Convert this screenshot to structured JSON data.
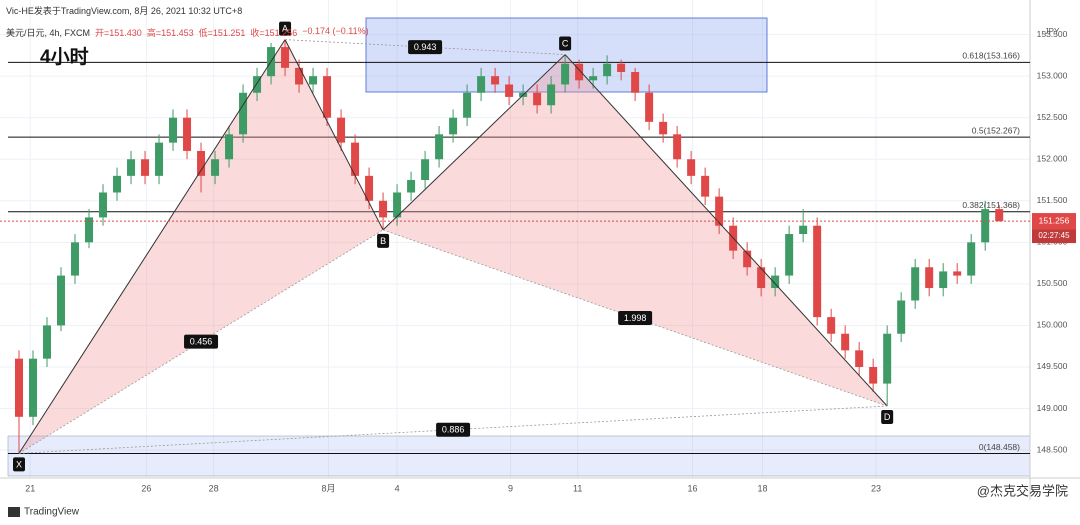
{
  "header": {
    "author_line": "Vic-HE发表于TradingView.com, 8月 26, 2021 10:32 UTC+8",
    "symbol": "美元/日元, 4h, FXCM",
    "quote": [
      "开=151.430",
      "高=151.453",
      "低=151.251",
      "收=151.256",
      "−0.174 (−0.11%)"
    ]
  },
  "chart_data": {
    "type": "candlestick",
    "title": "4小时",
    "currency": "JPY",
    "up_color": "#3f9b66",
    "down_color": "#e04848",
    "ohlc": [
      [
        149.6,
        149.7,
        148.46,
        148.9
      ],
      [
        148.9,
        149.7,
        148.8,
        149.6
      ],
      [
        149.6,
        150.1,
        149.5,
        150.0
      ],
      [
        150.0,
        150.7,
        149.93,
        150.6
      ],
      [
        150.6,
        151.1,
        150.5,
        151.0
      ],
      [
        151.0,
        151.4,
        150.93,
        151.3
      ],
      [
        151.3,
        151.7,
        151.2,
        151.6
      ],
      [
        151.6,
        151.9,
        151.5,
        151.8
      ],
      [
        151.8,
        152.1,
        151.7,
        152.0
      ],
      [
        152.0,
        152.1,
        151.7,
        151.8
      ],
      [
        151.8,
        152.3,
        151.7,
        152.2
      ],
      [
        152.2,
        152.6,
        152.1,
        152.5
      ],
      [
        152.5,
        152.6,
        152.0,
        152.1
      ],
      [
        152.1,
        152.2,
        151.6,
        151.8
      ],
      [
        151.8,
        152.1,
        151.7,
        152.0
      ],
      [
        152.0,
        152.4,
        151.9,
        152.3
      ],
      [
        152.3,
        152.9,
        152.2,
        152.8
      ],
      [
        152.8,
        153.1,
        152.7,
        153.0
      ],
      [
        153.0,
        153.4,
        152.9,
        153.35
      ],
      [
        153.35,
        153.44,
        153.0,
        153.1
      ],
      [
        153.1,
        153.2,
        152.8,
        152.9
      ],
      [
        152.9,
        153.1,
        152.8,
        153.0
      ],
      [
        153.0,
        153.1,
        152.4,
        152.5
      ],
      [
        152.5,
        152.6,
        152.1,
        152.2
      ],
      [
        152.2,
        152.3,
        151.7,
        151.8
      ],
      [
        151.8,
        151.9,
        151.4,
        151.5
      ],
      [
        151.5,
        151.6,
        151.15,
        151.3
      ],
      [
        151.3,
        151.7,
        151.2,
        151.6
      ],
      [
        151.6,
        151.85,
        151.5,
        151.75
      ],
      [
        151.75,
        152.1,
        151.65,
        152.0
      ],
      [
        152.0,
        152.4,
        151.9,
        152.3
      ],
      [
        152.3,
        152.6,
        152.2,
        152.5
      ],
      [
        152.5,
        152.9,
        152.4,
        152.8
      ],
      [
        152.8,
        153.1,
        152.7,
        153.0
      ],
      [
        153.0,
        153.1,
        152.8,
        152.9
      ],
      [
        152.9,
        153.0,
        152.65,
        152.75
      ],
      [
        152.75,
        152.9,
        152.65,
        152.8
      ],
      [
        152.8,
        152.9,
        152.55,
        152.65
      ],
      [
        152.65,
        153.0,
        152.55,
        152.9
      ],
      [
        152.9,
        153.26,
        152.8,
        153.15
      ],
      [
        153.15,
        153.2,
        152.85,
        152.95
      ],
      [
        152.95,
        153.1,
        152.85,
        153.0
      ],
      [
        153.0,
        153.25,
        152.9,
        153.15
      ],
      [
        153.15,
        153.2,
        152.95,
        153.05
      ],
      [
        153.05,
        153.1,
        152.7,
        152.8
      ],
      [
        152.8,
        152.9,
        152.35,
        152.45
      ],
      [
        152.45,
        152.55,
        152.2,
        152.3
      ],
      [
        152.3,
        152.4,
        151.9,
        152.0
      ],
      [
        152.0,
        152.1,
        151.7,
        151.8
      ],
      [
        151.8,
        151.9,
        151.45,
        151.55
      ],
      [
        151.55,
        151.65,
        151.1,
        151.2
      ],
      [
        151.2,
        151.3,
        150.8,
        150.9
      ],
      [
        150.9,
        151.0,
        150.6,
        150.7
      ],
      [
        150.7,
        150.8,
        150.35,
        150.45
      ],
      [
        150.45,
        150.7,
        150.35,
        150.6
      ],
      [
        150.6,
        151.2,
        150.5,
        151.1
      ],
      [
        151.1,
        151.4,
        151.0,
        151.2
      ],
      [
        151.2,
        151.3,
        150.0,
        150.1
      ],
      [
        150.1,
        150.2,
        149.8,
        149.9
      ],
      [
        149.9,
        150.0,
        149.6,
        149.7
      ],
      [
        149.7,
        149.8,
        149.4,
        149.5
      ],
      [
        149.5,
        149.6,
        149.2,
        149.3
      ],
      [
        149.3,
        150.0,
        149.03,
        149.9
      ],
      [
        149.9,
        150.4,
        149.8,
        150.3
      ],
      [
        150.3,
        150.8,
        150.2,
        150.7
      ],
      [
        150.7,
        150.8,
        150.35,
        150.45
      ],
      [
        150.45,
        150.75,
        150.35,
        150.65
      ],
      [
        150.65,
        150.75,
        150.5,
        150.6
      ],
      [
        150.6,
        151.1,
        150.5,
        151.0
      ],
      [
        151.0,
        151.5,
        150.9,
        151.4
      ],
      [
        151.4,
        151.45,
        151.25,
        151.256
      ]
    ],
    "xlim": [
      0,
      72.7
    ],
    "ylim": [
      148.26,
      153.7
    ],
    "xticks": [
      {
        "value": 1.3,
        "label": "21"
      },
      {
        "value": 9.6,
        "label": "26"
      },
      {
        "value": 14.4,
        "label": "28"
      },
      {
        "value": 22.6,
        "label": "8月"
      },
      {
        "value": 27.5,
        "label": "4"
      },
      {
        "value": 35.6,
        "label": "9"
      },
      {
        "value": 40.4,
        "label": "11"
      },
      {
        "value": 48.6,
        "label": "16"
      },
      {
        "value": 53.6,
        "label": "18"
      },
      {
        "value": 61.7,
        "label": "23"
      }
    ],
    "yticks": [
      {
        "value": 148.5,
        "label": "148.500"
      },
      {
        "value": 149,
        "label": "149.000"
      },
      {
        "value": 149.5,
        "label": "149.500"
      },
      {
        "value": 150,
        "label": "150.000"
      },
      {
        "value": 150.5,
        "label": "150.500"
      },
      {
        "value": 151,
        "label": "151.000"
      },
      {
        "value": 151.5,
        "label": "151.500"
      },
      {
        "value": 152,
        "label": "152.000"
      },
      {
        "value": 152.5,
        "label": "152.500"
      },
      {
        "value": 153,
        "label": "153.000"
      },
      {
        "value": 153.5,
        "label": "153.500"
      }
    ],
    "grid": true,
    "fib_levels": [
      {
        "value": 153.166,
        "label": "0.618(153.166)"
      },
      {
        "value": 152.267,
        "label": "0.5(152.267)"
      },
      {
        "value": 151.368,
        "label": "0.382(151.368)"
      },
      {
        "value": 148.458,
        "label": "0(148.458)"
      }
    ],
    "points": [
      {
        "label": "X",
        "x": 0.5,
        "price": 148.46
      },
      {
        "label": "A",
        "x": 19.5,
        "price": 153.44
      },
      {
        "label": "B",
        "x": 26.5,
        "price": 151.15
      },
      {
        "label": "C",
        "x": 39.5,
        "price": 153.26
      },
      {
        "label": "D",
        "x": 62.5,
        "price": 149.03
      }
    ],
    "ratios": [
      0.456,
      0.943,
      1.998,
      0.886
    ],
    "countdown": "02:27:45",
    "watermark": "@杰克交易学院",
    "brand": "TradingView"
  }
}
